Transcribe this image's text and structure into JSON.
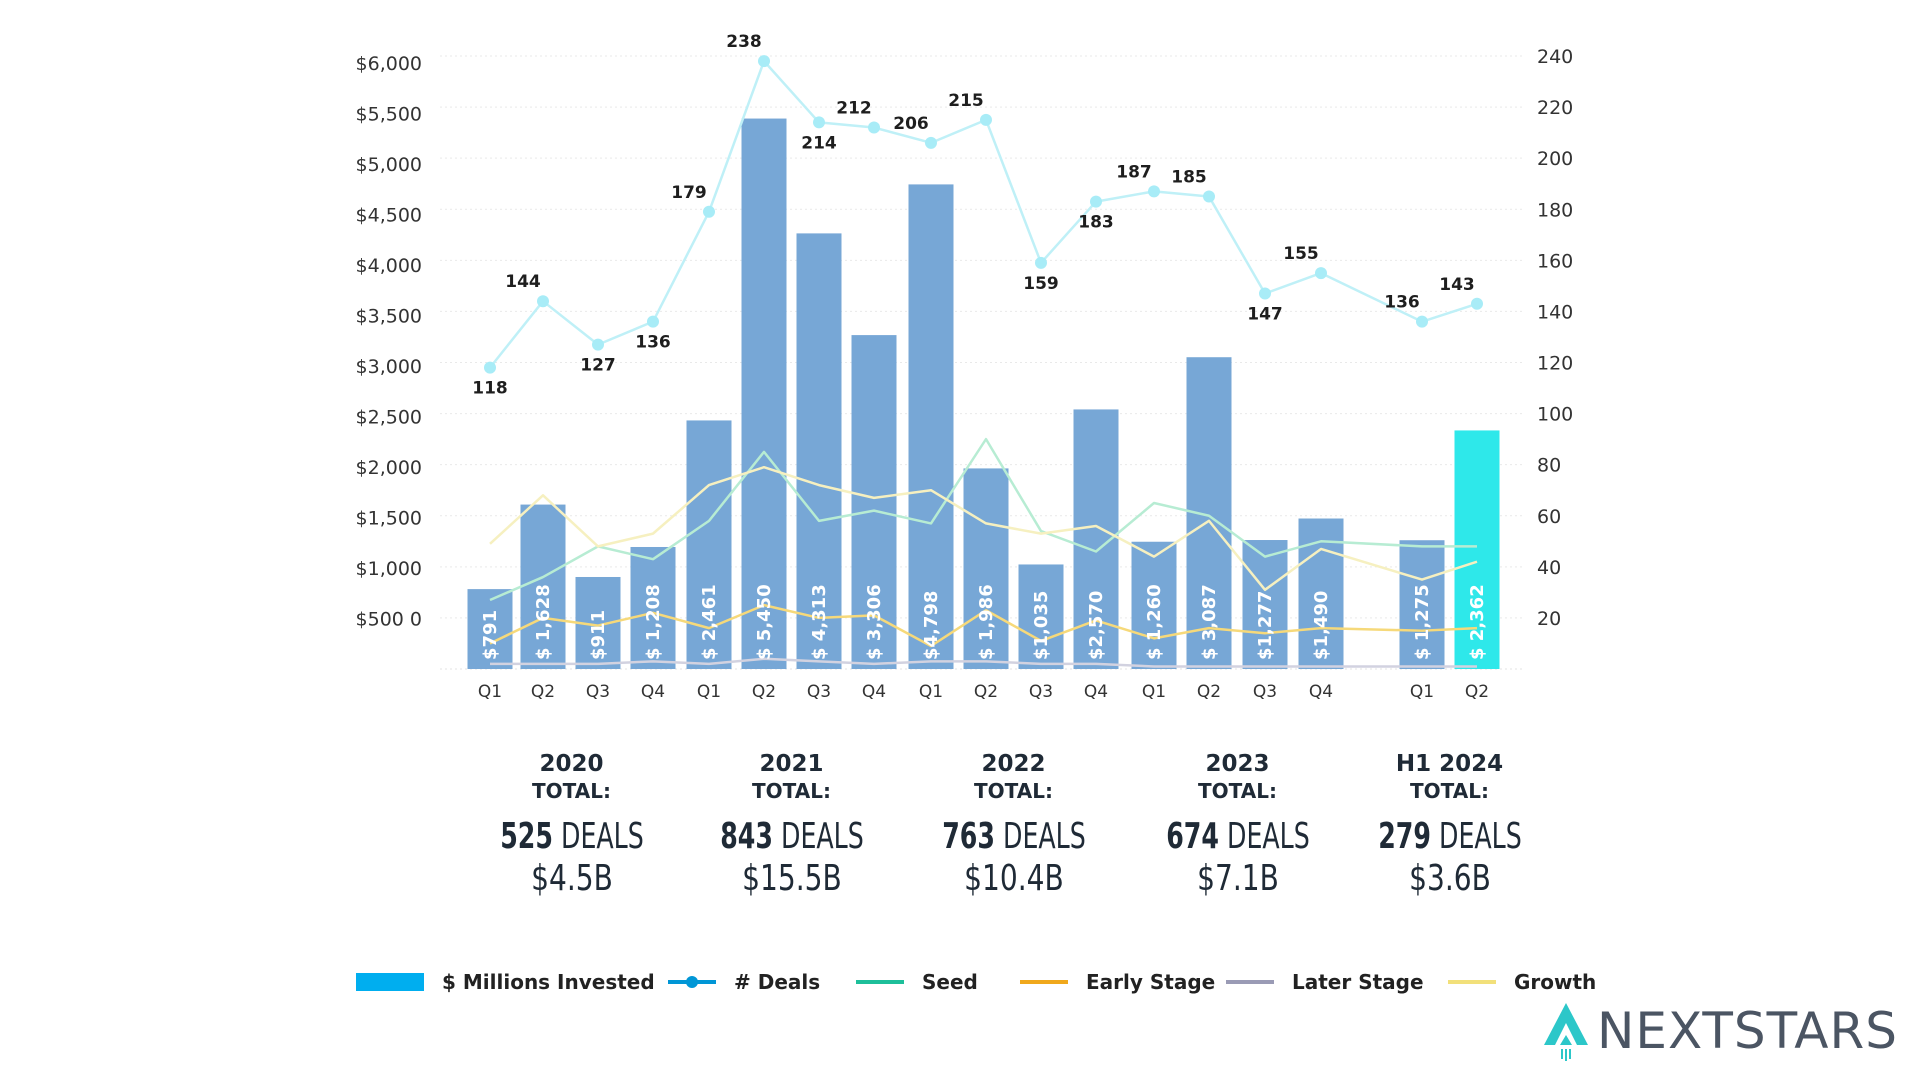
{
  "chart_data": {
    "type": "bar",
    "categories": [
      "Q1",
      "Q2",
      "Q3",
      "Q4",
      "Q1",
      "Q2",
      "Q3",
      "Q4",
      "Q1",
      "Q2",
      "Q3",
      "Q4",
      "Q1",
      "Q2",
      "Q3",
      "Q4",
      "Q1",
      "Q2"
    ],
    "groups": [
      {
        "label": "2020",
        "indices": [
          0,
          1,
          2,
          3
        ]
      },
      {
        "label": "2021",
        "indices": [
          4,
          5,
          6,
          7
        ]
      },
      {
        "label": "2022",
        "indices": [
          8,
          9,
          10,
          11
        ]
      },
      {
        "label": "2023",
        "indices": [
          12,
          13,
          14,
          15
        ]
      },
      {
        "label": "H1 2024",
        "indices": [
          16,
          17
        ]
      }
    ],
    "series": [
      {
        "name": "$ Millions Invested",
        "type": "bar",
        "axis": "left",
        "values": [
          791,
          1628,
          911,
          1208,
          2461,
          5450,
          4313,
          3306,
          4798,
          1986,
          1035,
          2570,
          1260,
          3087,
          1277,
          1490,
          1275,
          2362
        ],
        "labels": [
          "$791",
          "$ 1,628",
          "$911",
          "$ 1,208",
          "$ 2,461",
          "$ 5,450",
          "$ 4,313",
          "$ 3,306",
          "$4,798",
          "$ 1,986",
          "$1,035",
          "$2,570",
          "$ 1,260",
          "$ 3,087",
          "$1,277",
          "$1,490",
          "$ 1,275",
          "$ 2,362"
        ]
      },
      {
        "name": "# Deals",
        "type": "line",
        "axis": "right",
        "values": [
          118,
          144,
          127,
          136,
          179,
          238,
          214,
          212,
          206,
          215,
          159,
          183,
          187,
          185,
          147,
          155,
          136,
          143
        ]
      },
      {
        "name": "Seed",
        "type": "line",
        "axis": "right",
        "values": [
          27,
          36,
          48,
          43,
          58,
          85,
          58,
          62,
          57,
          90,
          54,
          46,
          65,
          60,
          44,
          50,
          48,
          48
        ]
      },
      {
        "name": "Early Stage",
        "type": "line",
        "axis": "right",
        "values": [
          10,
          20,
          17,
          22,
          16,
          25,
          20,
          21,
          9,
          23,
          11,
          19,
          12,
          16,
          14,
          16,
          15,
          16
        ]
      },
      {
        "name": "Later Stage",
        "type": "line",
        "axis": "right",
        "values": [
          2,
          2,
          2,
          3,
          2,
          4,
          3,
          2,
          3,
          3,
          2,
          2,
          1,
          1,
          1,
          1,
          1,
          1
        ]
      },
      {
        "name": "Growth",
        "type": "line",
        "axis": "right",
        "values": [
          49,
          68,
          48,
          53,
          72,
          79,
          72,
          67,
          70,
          57,
          53,
          56,
          44,
          58,
          31,
          47,
          35,
          42
        ]
      }
    ],
    "y_left": {
      "min": 0,
      "max": 6000,
      "ticks": [
        "$500 0",
        "$1,000",
        "$1,500",
        "$2,000",
        "$2,500",
        "$3,000",
        "$3,500",
        "$4,000",
        "$4,500",
        "$5,000",
        "$5,500",
        "$6,000"
      ],
      "tick_values": [
        500,
        1000,
        1500,
        2000,
        2500,
        3000,
        3500,
        4000,
        4500,
        5000,
        5500,
        6000
      ]
    },
    "y_right": {
      "min": 0,
      "max": 240,
      "ticks": [
        "20",
        "40",
        "60",
        "80",
        "100",
        "120",
        "140",
        "160",
        "180",
        "200",
        "220",
        "240"
      ],
      "tick_values": [
        20,
        40,
        60,
        80,
        100,
        120,
        140,
        160,
        180,
        200,
        220,
        240
      ]
    },
    "grid": true,
    "legend_position": "bottom",
    "highlight_index": 17
  },
  "totals": [
    {
      "year": "2020",
      "label": "TOTAL:",
      "deals": "525",
      "deals_word": "DEALS",
      "amount": "$4.5B"
    },
    {
      "year": "2021",
      "label": "TOTAL:",
      "deals": "843",
      "deals_word": "DEALS",
      "amount": "$15.5B"
    },
    {
      "year": "2022",
      "label": "TOTAL:",
      "deals": "763",
      "deals_word": "DEALS",
      "amount": "$10.4B"
    },
    {
      "year": "2023",
      "label": "TOTAL:",
      "deals": "674",
      "deals_word": "DEALS",
      "amount": "$7.1B"
    },
    {
      "year": "H1 2024",
      "label": "TOTAL:",
      "deals": "279",
      "deals_word": "DEALS",
      "amount": "$3.6B"
    }
  ],
  "legend": [
    {
      "label": "$ Millions Invested",
      "color": "#00aeef",
      "style": "bar"
    },
    {
      "label": "# Deals",
      "color": "#0096d6",
      "style": "line-dot"
    },
    {
      "label": "Seed",
      "color": "#1dbf9a",
      "style": "line"
    },
    {
      "label": "Early Stage",
      "color": "#f0a81c",
      "style": "line"
    },
    {
      "label": "Later Stage",
      "color": "#9a9bb5",
      "style": "line"
    },
    {
      "label": "Growth",
      "color": "#f2e07a",
      "style": "line"
    }
  ],
  "logo": {
    "text": "NEXTSTARS"
  },
  "colors": {
    "bar": "#77a7d6",
    "bar_highlight": "#2ee8ea",
    "deals_line": "#bff0f7",
    "deals_marker": "#a8ecf7",
    "seed_line": "#b7ecd3",
    "early_line": "#f6d97a",
    "later_line": "#d2d2e0",
    "growth_line": "#f6f0c0",
    "axis_text": "#333333"
  }
}
